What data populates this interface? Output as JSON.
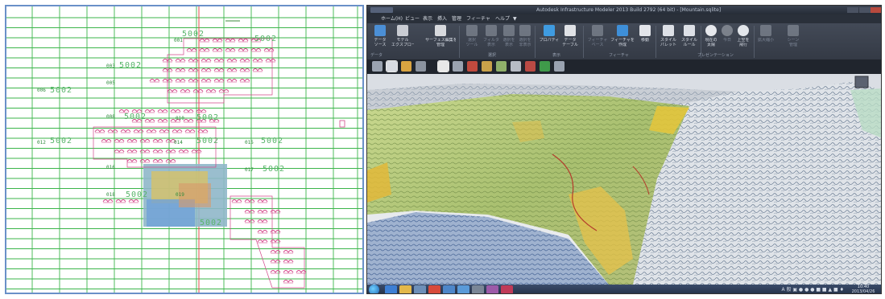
{
  "left_map": {
    "sheet_labels": [
      "5002",
      "5002",
      "5002",
      "5002",
      "5002",
      "5002",
      "5002",
      "5002",
      "5002",
      "5002",
      "5002",
      "5002"
    ],
    "block_codes": [
      "001",
      "003",
      "005",
      "006",
      "008",
      "010",
      "012",
      "014",
      "015",
      "016",
      "017",
      "018",
      "019"
    ]
  },
  "app": {
    "window_title": "Autodesk Infrastructure Modeler 2013  Build 2792 (64 bit)  - [Mountain.sqlite]",
    "menu": [
      "ホーム(H)",
      "ビュー",
      "表示",
      "挿入",
      "管理",
      "フィーチャ",
      "ヘルプ",
      "▼"
    ],
    "ribbon": {
      "buttons": [
        {
          "label1": "データ",
          "label2": "ソース"
        },
        {
          "label1": "モデル",
          "label2": "エクスプローラ"
        },
        {
          "label1": "サーフェス編集を",
          "label2": "管理"
        },
        {
          "label1": "選択",
          "label2": "ツール"
        },
        {
          "label1": "フィルタ",
          "label2": "表示"
        },
        {
          "label1": "選択を",
          "label2": "表示"
        },
        {
          "label1": "選択を",
          "label2": "非表示"
        },
        {
          "label1": "プロパティ",
          "label2": ""
        },
        {
          "label1": "データ",
          "label2": "テーブル"
        },
        {
          "label1": "フィーチャ",
          "label2": "ベース"
        },
        {
          "label1": "フィーチャを",
          "label2": "作成"
        },
        {
          "label1": "移動",
          "label2": ""
        },
        {
          "label1": "スタイル",
          "label2": "パレット"
        },
        {
          "label1": "スタイル",
          "label2": "ルール"
        },
        {
          "label1": "現在の",
          "label2": "太陽"
        },
        {
          "label1": "今日",
          "label2": ""
        },
        {
          "label1": "上空を",
          "label2": "飛行"
        },
        {
          "label1": "拡大縮小",
          "label2": ""
        },
        {
          "label1": "シーン",
          "label2": "管理"
        }
      ],
      "groups": [
        "データ",
        "選択",
        "表示",
        "フィーチャ",
        "プレゼンテーション"
      ]
    },
    "taskbar": {
      "tray_text": "A 般 ▣ ● ● ● ■ ■ ▲ ■ ♦",
      "time": "10:40",
      "date": "2013/04/26"
    }
  }
}
